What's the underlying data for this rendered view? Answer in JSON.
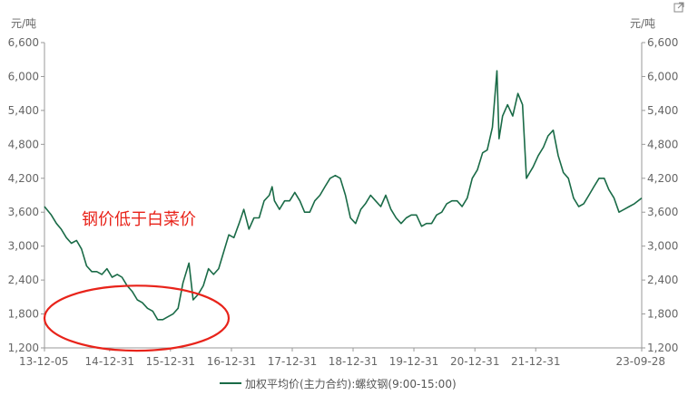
{
  "chart_data": {
    "type": "line",
    "title": "",
    "unit_left": "元/吨",
    "unit_right": "元/吨",
    "ylim": [
      1200,
      6600
    ],
    "yticks": [
      1200,
      1800,
      2400,
      3000,
      3600,
      4200,
      4800,
      5400,
      6000,
      6600
    ],
    "ytick_labels": [
      "1,200",
      "1,800",
      "2,400",
      "3,000",
      "3,600",
      "4,200",
      "4,800",
      "5,400",
      "6,000",
      "6,600"
    ],
    "xlim": [
      "2013-12-05",
      "2023-09-28"
    ],
    "xticks": [
      "2013-12-05",
      "2014-12-31",
      "2015-12-31",
      "2016-12-31",
      "2017-12-31",
      "2018-12-31",
      "2019-12-31",
      "2020-12-31",
      "2021-12-31",
      "2023-09-28"
    ],
    "xtick_labels": [
      "13-12-05",
      "14-12-31",
      "15-12-31",
      "16-12-31",
      "17-12-31",
      "18-12-31",
      "19-12-31",
      "20-12-31",
      "21-12-31",
      "23-09-28"
    ],
    "grid": false,
    "legend_position": "bottom-center",
    "annotation": {
      "text": "钢价低于白菜价",
      "color": "#e8231a",
      "highlight_from": "2013-12-05",
      "highlight_to": "2016-12-15",
      "highlight_y_range": [
        1150,
        2300
      ]
    },
    "series": [
      {
        "name": "加权平均价(主力合约):螺纹钢(9:00-15:00)",
        "color": "#1a6b47",
        "x": [
          "2013-12-05",
          "2014-01-15",
          "2014-02-15",
          "2014-03-15",
          "2014-04-15",
          "2014-05-15",
          "2014-06-15",
          "2014-07-15",
          "2014-08-15",
          "2014-09-15",
          "2014-10-15",
          "2014-11-15",
          "2014-12-15",
          "2015-01-15",
          "2015-02-15",
          "2015-03-15",
          "2015-04-15",
          "2015-05-15",
          "2015-06-15",
          "2015-07-15",
          "2015-08-15",
          "2015-09-15",
          "2015-10-15",
          "2015-11-15",
          "2015-12-15",
          "2016-01-15",
          "2016-02-15",
          "2016-03-15",
          "2016-04-20",
          "2016-05-15",
          "2016-06-15",
          "2016-07-15",
          "2016-08-15",
          "2016-09-15",
          "2016-10-15",
          "2016-11-15",
          "2016-12-15",
          "2017-01-15",
          "2017-02-15",
          "2017-03-15",
          "2017-04-15",
          "2017-05-15",
          "2017-06-15",
          "2017-07-15",
          "2017-08-15",
          "2017-09-01",
          "2017-09-15",
          "2017-10-15",
          "2017-11-15",
          "2017-12-15",
          "2018-01-15",
          "2018-02-15",
          "2018-03-15",
          "2018-04-15",
          "2018-05-15",
          "2018-06-15",
          "2018-07-15",
          "2018-08-15",
          "2018-09-15",
          "2018-10-15",
          "2018-11-15",
          "2018-12-15",
          "2019-01-15",
          "2019-02-15",
          "2019-03-15",
          "2019-04-15",
          "2019-05-15",
          "2019-06-15",
          "2019-07-15",
          "2019-08-15",
          "2019-09-15",
          "2019-10-15",
          "2019-11-15",
          "2019-12-15",
          "2020-01-15",
          "2020-02-15",
          "2020-03-15",
          "2020-04-15",
          "2020-05-15",
          "2020-06-15",
          "2020-07-15",
          "2020-08-15",
          "2020-09-15",
          "2020-10-15",
          "2020-11-15",
          "2020-12-15",
          "2021-01-15",
          "2021-02-15",
          "2021-03-15",
          "2021-04-15",
          "2021-05-12",
          "2021-05-25",
          "2021-06-15",
          "2021-07-15",
          "2021-08-15",
          "2021-09-15",
          "2021-10-13",
          "2021-11-05",
          "2021-11-25",
          "2021-12-15",
          "2022-01-15",
          "2022-02-15",
          "2022-03-15",
          "2022-04-15",
          "2022-05-15",
          "2022-06-15",
          "2022-07-15",
          "2022-08-15",
          "2022-09-15",
          "2022-10-15",
          "2022-11-15",
          "2022-12-15",
          "2023-01-15",
          "2023-02-15",
          "2023-03-15",
          "2023-04-15",
          "2023-05-15",
          "2023-06-15",
          "2023-07-15",
          "2023-08-15",
          "2023-09-28"
        ],
        "values": [
          3700,
          3550,
          3400,
          3300,
          3150,
          3050,
          3100,
          2950,
          2650,
          2550,
          2550,
          2500,
          2600,
          2450,
          2500,
          2450,
          2300,
          2200,
          2050,
          2000,
          1900,
          1850,
          1700,
          1700,
          1750,
          1800,
          1900,
          2350,
          2700,
          2050,
          2150,
          2300,
          2600,
          2500,
          2600,
          2900,
          3200,
          3150,
          3400,
          3650,
          3300,
          3500,
          3500,
          3800,
          3900,
          4050,
          3800,
          3650,
          3800,
          3800,
          3950,
          3800,
          3600,
          3600,
          3800,
          3900,
          4050,
          4200,
          4250,
          4200,
          3900,
          3500,
          3400,
          3650,
          3750,
          3900,
          3800,
          3700,
          3900,
          3650,
          3500,
          3400,
          3500,
          3550,
          3550,
          3350,
          3400,
          3400,
          3550,
          3600,
          3750,
          3800,
          3800,
          3700,
          3850,
          4200,
          4350,
          4650,
          4700,
          5100,
          6100,
          4900,
          5300,
          5500,
          5300,
          5700,
          5500,
          4200,
          4300,
          4400,
          4600,
          4750,
          4950,
          5050,
          4600,
          4300,
          4200,
          3850,
          3700,
          3750,
          3900,
          4050,
          4200,
          4200,
          4000,
          3850,
          3600,
          3650,
          3700,
          3750,
          3850
        ]
      }
    ]
  },
  "toolbar": {
    "expand_icon": "external-link-icon"
  }
}
